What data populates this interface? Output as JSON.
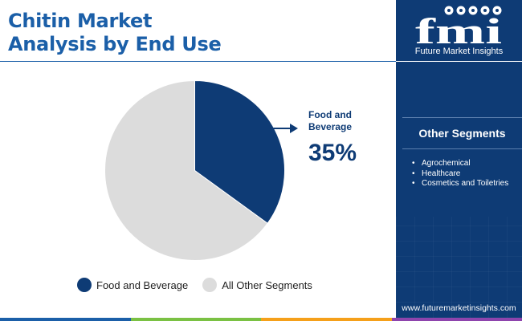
{
  "title_lines": [
    "Chitin Market",
    "Analysis by End Use"
  ],
  "chart_data": {
    "type": "pie",
    "labels": [
      "Food and Beverage",
      "All Other Segments"
    ],
    "values": [
      35,
      65
    ],
    "colors": [
      "#0e3b75",
      "#dcdcdc"
    ],
    "data_labels": [
      "35%",
      ""
    ],
    "legend_position": "bottom",
    "start_angle": "12 o'clock, clockwise"
  },
  "callout": {
    "label": "Food and Beverage",
    "value": "35%"
  },
  "legend": {
    "items": [
      {
        "label": "Food and Beverage",
        "color": "#0e3b75"
      },
      {
        "label": "All Other Segments",
        "color": "#dcdcdc"
      }
    ]
  },
  "sidebar": {
    "logo_text": "fmi",
    "logo_subtitle": "Future Market Insights",
    "segments_title": "Other Segments",
    "segments": [
      "Agrochemical",
      "Healthcare",
      "Cosmetics and Toiletries"
    ],
    "url": "www.futuremarketinsights.com"
  },
  "colors": {
    "brand_blue": "#0e3b75",
    "title_blue": "#1b5fa8",
    "pie_grey": "#dcdcdc",
    "bottom_bar": [
      "#1b5fa8",
      "#7ac143",
      "#f5a01a",
      "#8e44ad"
    ]
  }
}
